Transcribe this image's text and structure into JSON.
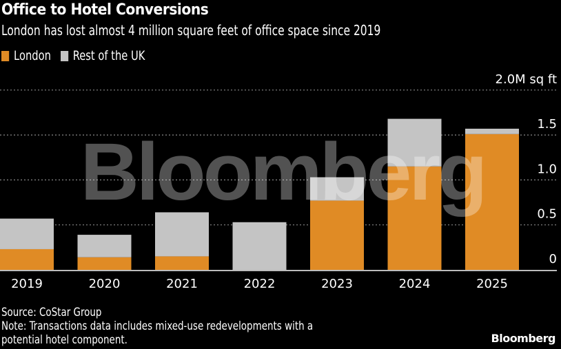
{
  "header": {
    "title": "Office to Hotel Conversions",
    "subtitle": "London has lost almost 4 million square feet of office space since 2019"
  },
  "legend": [
    {
      "label": "London",
      "color": "#e08b25"
    },
    {
      "label": "Rest of the UK",
      "color": "#c4c4c4"
    }
  ],
  "footer": {
    "source": "Source: CoStar Group",
    "note_line1": "Note: Transactions data includes mixed-use redevelopments with a",
    "note_line2": "potential hotel component.",
    "brand": "Bloomberg"
  },
  "watermark": "Bloomberg",
  "chart_data": {
    "type": "bar",
    "stacked": true,
    "title": "Office to Hotel Conversions",
    "subtitle": "London has lost almost 4 million square feet of office space since 2019",
    "xlabel": "",
    "ylabel": "M sq ft",
    "categories": [
      "2019",
      "2020",
      "2021",
      "2022",
      "2023",
      "2024",
      "2025"
    ],
    "series": [
      {
        "name": "London",
        "color": "#e08b25",
        "values": [
          0.23,
          0.14,
          0.15,
          0.0,
          0.77,
          1.15,
          1.51
        ]
      },
      {
        "name": "Rest of the UK",
        "color": "#c4c4c4",
        "values": [
          0.34,
          0.25,
          0.49,
          0.53,
          0.26,
          0.53,
          0.06
        ]
      }
    ],
    "ylim": [
      0,
      2.0
    ],
    "yticks": [
      0,
      0.5,
      1.0,
      1.5,
      2.0
    ],
    "ytick_labels": [
      "0",
      "0.5",
      "1.0",
      "1.5",
      "2.0M sq ft"
    ],
    "grid": true,
    "legend_position": "top-left",
    "y_axis_side": "right"
  }
}
